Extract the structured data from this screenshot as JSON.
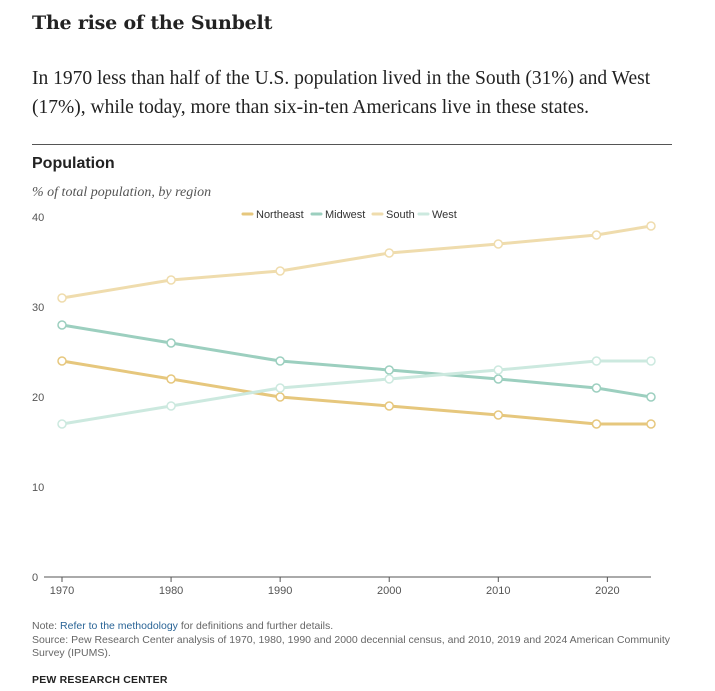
{
  "header": {
    "title": "The rise of the Sunbelt",
    "subtitle": "In 1970 less than half of the U.S. population lived in the South (31%) and West (17%), while today, more than six-in-ten Americans live in these states."
  },
  "chart_data": {
    "type": "line",
    "title": "Population",
    "subtitle": "% of total population, by region",
    "xlabel": "",
    "ylabel": "",
    "x": [
      1970,
      1980,
      1990,
      2000,
      2010,
      2019,
      2024
    ],
    "x_ticks": [
      1970,
      1980,
      1990,
      2000,
      2010,
      2020
    ],
    "y_ticks": [
      0,
      10,
      20,
      30,
      40
    ],
    "ylim": [
      0,
      40
    ],
    "xlim": [
      1970,
      2024
    ],
    "grid": false,
    "legend_position": "top-center",
    "series": [
      {
        "name": "Northeast",
        "color": "#e6c77d",
        "values": [
          24,
          22,
          20,
          19,
          18,
          17,
          17
        ]
      },
      {
        "name": "Midwest",
        "color": "#9ccfbf",
        "values": [
          28,
          26,
          24,
          23,
          22,
          21,
          20
        ]
      },
      {
        "name": "South",
        "color": "#efdcad",
        "values": [
          31,
          33,
          34,
          36,
          37,
          38,
          39
        ]
      },
      {
        "name": "West",
        "color": "#cce9df",
        "values": [
          17,
          19,
          21,
          22,
          23,
          24,
          24
        ]
      }
    ]
  },
  "footer": {
    "note_prefix": "Note: ",
    "note_link": "Refer to the methodology",
    "note_suffix": " for definitions and further details.",
    "source": "Source: Pew Research Center analysis of 1970, 1980, 1990 and 2000 decennial census, and 2010, 2019 and 2024 American Community Survey (IPUMS).",
    "organization": "PEW RESEARCH CENTER"
  }
}
